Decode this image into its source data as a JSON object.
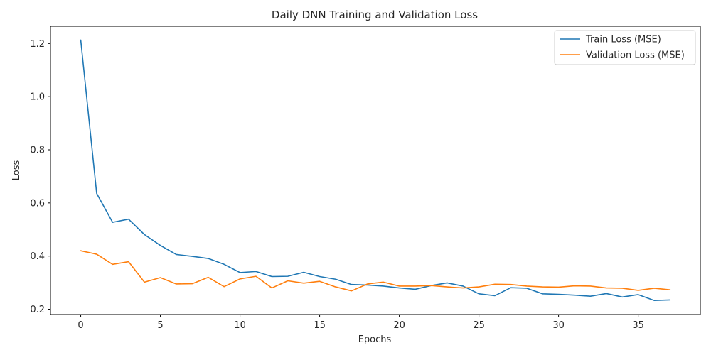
{
  "chart_data": {
    "type": "line",
    "title": "Daily DNN Training and Validation Loss",
    "xlabel": "Epochs",
    "ylabel": "Loss",
    "xlim": [
      -1.9,
      38.9
    ],
    "ylim": [
      0.18,
      1.265
    ],
    "xticks": [
      0,
      5,
      10,
      15,
      20,
      25,
      30,
      35
    ],
    "yticks": [
      0.2,
      0.4,
      0.6,
      0.8,
      1.0,
      1.2
    ],
    "ytick_labels": [
      "0.2",
      "0.4",
      "0.6",
      "0.8",
      "1.0",
      "1.2"
    ],
    "legend_position": "upper-right",
    "grid": false,
    "x": [
      0,
      1,
      2,
      3,
      4,
      5,
      6,
      7,
      8,
      9,
      10,
      11,
      12,
      13,
      14,
      15,
      16,
      17,
      18,
      19,
      20,
      21,
      22,
      23,
      24,
      25,
      26,
      27,
      28,
      29,
      30,
      31,
      32,
      33,
      34,
      35,
      36,
      37
    ],
    "series": [
      {
        "name": "Train Loss (MSE)",
        "color": "#1f77b4",
        "values": [
          1.213,
          0.636,
          0.527,
          0.539,
          0.481,
          0.44,
          0.406,
          0.399,
          0.391,
          0.369,
          0.338,
          0.342,
          0.323,
          0.324,
          0.339,
          0.323,
          0.313,
          0.293,
          0.291,
          0.287,
          0.28,
          0.275,
          0.289,
          0.299,
          0.287,
          0.258,
          0.251,
          0.281,
          0.279,
          0.258,
          0.256,
          0.253,
          0.249,
          0.259,
          0.246,
          0.255,
          0.233,
          0.235
        ]
      },
      {
        "name": "Validation Loss (MSE)",
        "color": "#ff7f0e",
        "values": [
          0.42,
          0.407,
          0.369,
          0.379,
          0.302,
          0.319,
          0.295,
          0.296,
          0.32,
          0.285,
          0.314,
          0.324,
          0.28,
          0.307,
          0.298,
          0.305,
          0.284,
          0.269,
          0.295,
          0.302,
          0.287,
          0.287,
          0.289,
          0.284,
          0.28,
          0.284,
          0.294,
          0.293,
          0.287,
          0.284,
          0.283,
          0.288,
          0.287,
          0.28,
          0.279,
          0.271,
          0.279,
          0.273
        ]
      }
    ]
  }
}
